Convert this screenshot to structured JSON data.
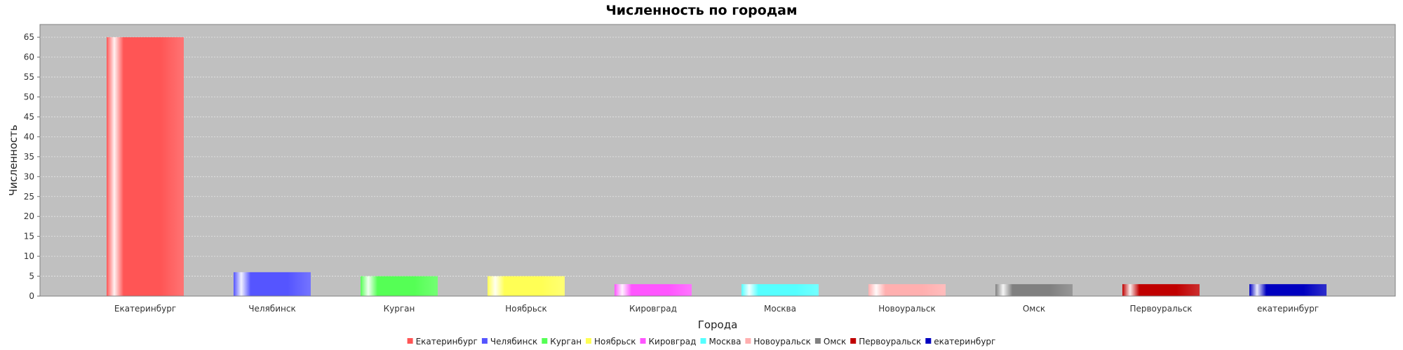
{
  "chart_data": {
    "type": "bar",
    "title": "Численность по городам",
    "xlabel": "Города",
    "ylabel": "Численность",
    "ylim": [
      0,
      68
    ],
    "yticks": [
      0,
      5,
      10,
      15,
      20,
      25,
      30,
      35,
      40,
      45,
      50,
      55,
      60,
      65
    ],
    "grid": true,
    "legend_position": "bottom",
    "categories": [
      "Екатеринбург",
      "Челябинск",
      "Курган",
      "Ноябрьск",
      "Кировград",
      "Москва",
      "Новоуральск",
      "Омск",
      "Первоуральск",
      "екатеринбург"
    ],
    "values": [
      65,
      6,
      5,
      5,
      3,
      3,
      3,
      3,
      3,
      3
    ],
    "colors": [
      "#ff5555",
      "#5555ff",
      "#55ff55",
      "#ffff55",
      "#ff55ff",
      "#55ffff",
      "#ffafaf",
      "#808080",
      "#c00000",
      "#0000c0"
    ]
  }
}
